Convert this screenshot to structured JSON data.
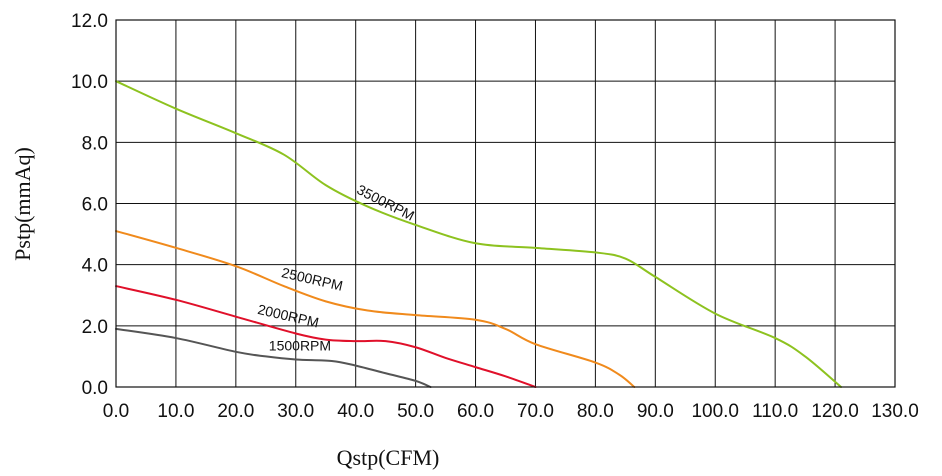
{
  "chart_data": {
    "type": "line",
    "title": "",
    "xlabel": "Qstp(CFM)",
    "ylabel": "Pstp(mmAq)",
    "xlim": [
      0,
      130
    ],
    "ylim": [
      0,
      12
    ],
    "grid": true,
    "x_ticks": [
      0,
      10,
      20,
      30,
      40,
      50,
      60,
      70,
      80,
      90,
      100,
      110,
      120,
      130
    ],
    "x_tick_labels": [
      "0.0",
      "10.0",
      "20.0",
      "30.0",
      "40.0",
      "50.0",
      "60.0",
      "70.0",
      "80.0",
      "90.0",
      "100.0",
      "110.0",
      "120.0",
      "130.0"
    ],
    "y_ticks": [
      0,
      2,
      4,
      6,
      8,
      10,
      12
    ],
    "y_tick_labels": [
      "0.0",
      "2.0",
      "4.0",
      "6.0",
      "8.0",
      "10.0",
      "12.0"
    ],
    "series": [
      {
        "name": "3500RPM",
        "color": "#8dc21f",
        "points": [
          [
            0,
            10.0
          ],
          [
            10,
            9.1
          ],
          [
            20,
            8.3
          ],
          [
            28,
            7.6
          ],
          [
            35,
            6.6
          ],
          [
            42,
            5.9
          ],
          [
            50,
            5.3
          ],
          [
            60,
            4.7
          ],
          [
            70,
            4.55
          ],
          [
            80,
            4.4
          ],
          [
            85,
            4.2
          ],
          [
            90,
            3.6
          ],
          [
            100,
            2.4
          ],
          [
            110,
            1.6
          ],
          [
            115,
            1.0
          ],
          [
            121,
            0.0
          ]
        ]
      },
      {
        "name": "2500RPM",
        "color": "#f08a1c",
        "points": [
          [
            0,
            5.1
          ],
          [
            10,
            4.55
          ],
          [
            20,
            3.95
          ],
          [
            28,
            3.3
          ],
          [
            35,
            2.8
          ],
          [
            42,
            2.5
          ],
          [
            50,
            2.35
          ],
          [
            60,
            2.2
          ],
          [
            65,
            1.9
          ],
          [
            70,
            1.4
          ],
          [
            80,
            0.8
          ],
          [
            84,
            0.4
          ],
          [
            86.5,
            0.0
          ]
        ]
      },
      {
        "name": "2000RPM",
        "color": "#e0102a",
        "points": [
          [
            0,
            3.3
          ],
          [
            10,
            2.85
          ],
          [
            20,
            2.3
          ],
          [
            30,
            1.75
          ],
          [
            35,
            1.55
          ],
          [
            40,
            1.5
          ],
          [
            45,
            1.5
          ],
          [
            50,
            1.3
          ],
          [
            55,
            0.95
          ],
          [
            60,
            0.65
          ],
          [
            65,
            0.35
          ],
          [
            70,
            0.0
          ]
        ]
      },
      {
        "name": "1500RPM",
        "color": "#555555",
        "points": [
          [
            0,
            1.9
          ],
          [
            10,
            1.6
          ],
          [
            20,
            1.15
          ],
          [
            25,
            1.0
          ],
          [
            30,
            0.9
          ],
          [
            36,
            0.85
          ],
          [
            40,
            0.7
          ],
          [
            45,
            0.45
          ],
          [
            50,
            0.2
          ],
          [
            52.5,
            0.0
          ]
        ]
      }
    ],
    "annotations": [
      {
        "text": "3500RPM",
        "series": "3500RPM",
        "x": 40,
        "y": 6.35,
        "angle": 27
      },
      {
        "text": "2500RPM",
        "series": "2500RPM",
        "x": 27.5,
        "y": 3.6,
        "angle": 13
      },
      {
        "text": "2000RPM",
        "series": "2000RPM",
        "x": 23.5,
        "y": 2.4,
        "angle": 13
      },
      {
        "text": "1500RPM",
        "series": "1500RPM",
        "x": 25.5,
        "y": 1.2,
        "angle": 0
      }
    ]
  }
}
